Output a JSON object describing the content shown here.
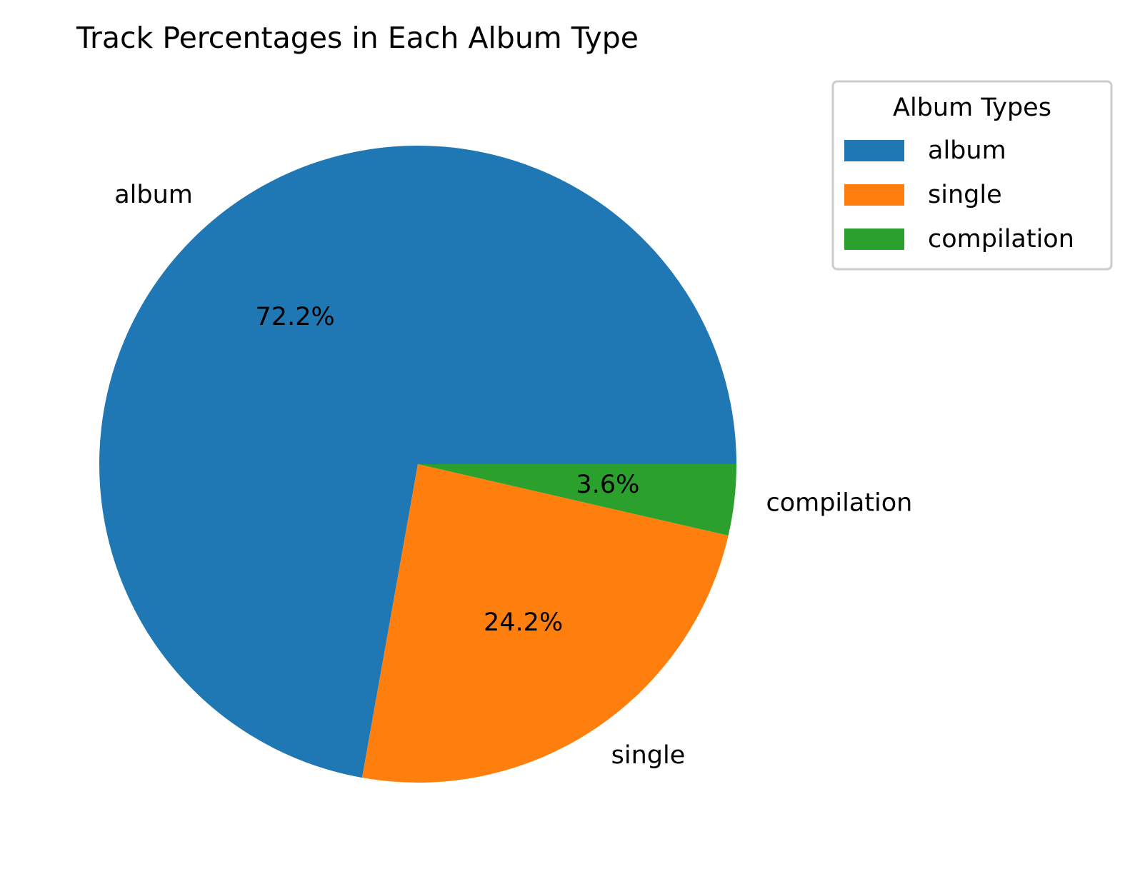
{
  "chart_data": {
    "type": "pie",
    "title": "Track Percentages in Each Album Type",
    "categories": [
      "album",
      "single",
      "compilation"
    ],
    "values": [
      72.2,
      24.2,
      3.6
    ],
    "percent_labels": [
      "72.2%",
      "24.2%",
      "3.6%"
    ],
    "colors": [
      "#1f77b4",
      "#ff7f0e",
      "#2ca02c"
    ],
    "start_angle_deg": 0,
    "direction": "counterclockwise",
    "legend": {
      "title": "Album Types",
      "entries": [
        "album",
        "single",
        "compilation"
      ],
      "placement": "upper right, outside plot"
    }
  }
}
